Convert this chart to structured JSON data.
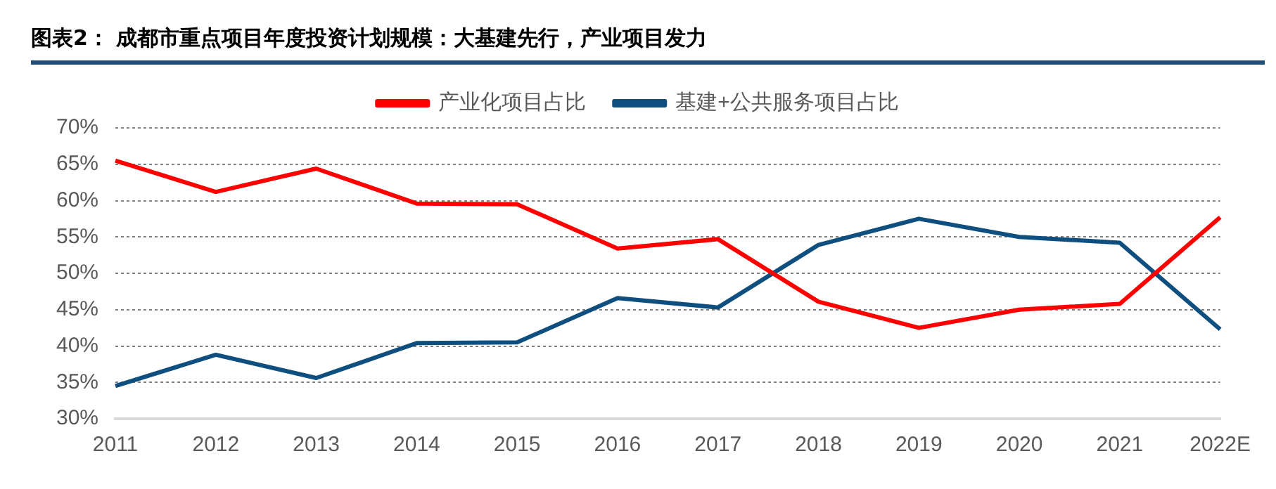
{
  "chart_data": {
    "type": "line",
    "title": "图表2：  成都市重点项目年度投资计划规模：大基建先行，产业项目发力",
    "categories": [
      "2011",
      "2012",
      "2013",
      "2014",
      "2015",
      "2016",
      "2017",
      "2018",
      "2019",
      "2020",
      "2021",
      "2022E"
    ],
    "series": [
      {
        "name": "产业化项目占比",
        "color": "#ff0000",
        "values": [
          65.5,
          61.2,
          64.4,
          59.6,
          59.5,
          53.4,
          54.7,
          46.1,
          42.5,
          45.0,
          45.8,
          57.7
        ]
      },
      {
        "name": "基建+公共服务项目占比",
        "color": "#0f4f7f",
        "values": [
          34.5,
          38.8,
          35.6,
          40.4,
          40.5,
          46.6,
          45.3,
          53.9,
          57.5,
          55.0,
          54.2,
          42.3
        ]
      }
    ],
    "ylim": [
      30,
      70
    ],
    "yticks": [
      {
        "value": 30,
        "label": "30%"
      },
      {
        "value": 35,
        "label": "35%"
      },
      {
        "value": 40,
        "label": "40%"
      },
      {
        "value": 45,
        "label": "45%"
      },
      {
        "value": 50,
        "label": "50%"
      },
      {
        "value": 55,
        "label": "55%"
      },
      {
        "value": 60,
        "label": "60%"
      },
      {
        "value": 65,
        "label": "65%"
      },
      {
        "value": 70,
        "label": "70%"
      }
    ],
    "grid": "y",
    "legend": "top",
    "marker": "none",
    "line_style": "solid"
  }
}
